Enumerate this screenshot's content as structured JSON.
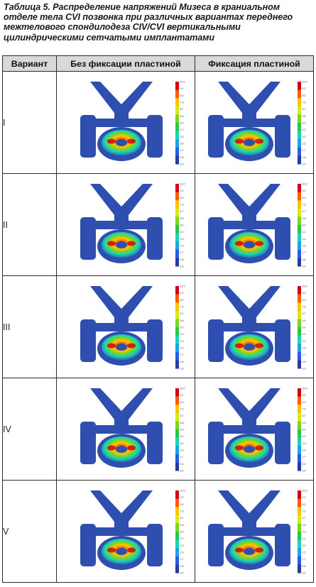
{
  "caption": "Таблица 5. Распределение напряжений Мизеса в краниальном отделе тела CVI позвонка при различных вариантах переднего межтелового спондилодеза CIV/CVI вертикальными цилиндрическими сетчатыми имплантатами",
  "table": {
    "headers": [
      "Вариант",
      "Без фиксации пластиной",
      "Фиксация пластиной"
    ],
    "rows": [
      {
        "variant": "I"
      },
      {
        "variant": "II"
      },
      {
        "variant": "III"
      },
      {
        "variant": "IV"
      },
      {
        "variant": "V"
      }
    ]
  },
  "colorbar": {
    "ticks": [
      "10.0",
      "9.2",
      "8.3",
      "7.5",
      "6.7",
      "5.8",
      "5.0",
      "4.2",
      "3.3",
      "2.5",
      "1.7",
      "0.8",
      "0.0"
    ],
    "colors": [
      "#d0021b",
      "#ff5a00",
      "#ffc400",
      "#d7ea1a",
      "#7fd321",
      "#22c94a",
      "#1bd4b4",
      "#1aa6e6",
      "#2a5de0",
      "#283a9e"
    ]
  },
  "model": {
    "base_color": "#2e4fb0",
    "stress_colors": [
      "#1bd4b4",
      "#7fd321",
      "#ffc400",
      "#ff5a00",
      "#d0021b"
    ]
  }
}
